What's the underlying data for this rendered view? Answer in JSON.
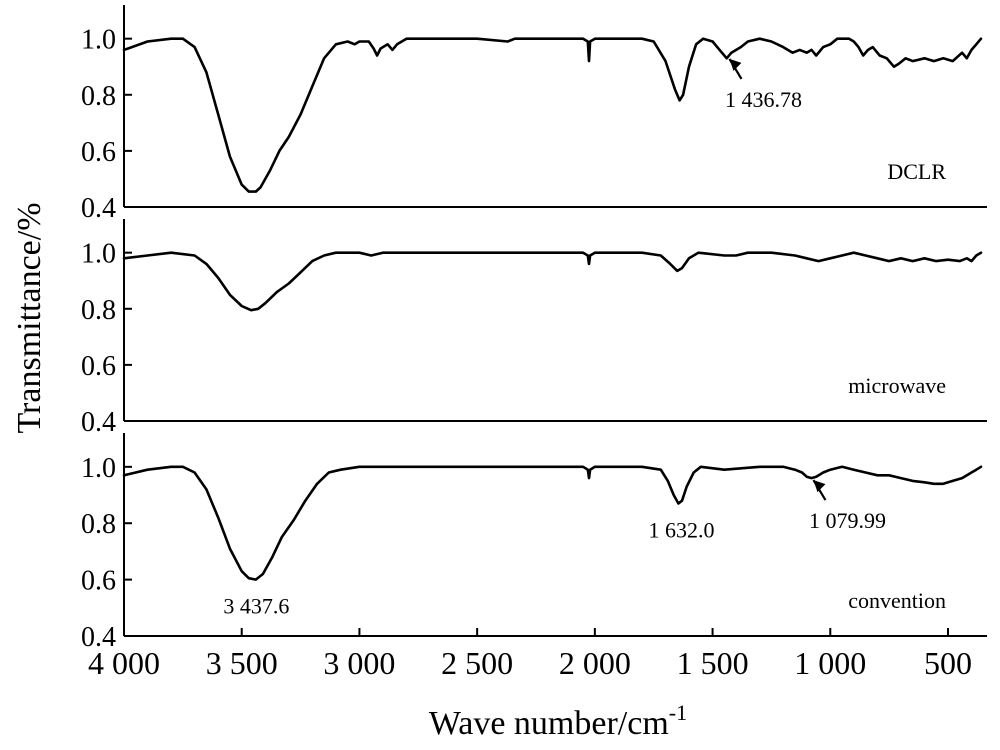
{
  "chart_data": {
    "type": "line",
    "xlabel": "Wave number/cm",
    "xlabel_superscript": "-1",
    "ylabel": "Transmittance/%",
    "xlim": [
      4000,
      400
    ],
    "xticks": [
      {
        "value": 4000,
        "label": "4 000"
      },
      {
        "value": 3500,
        "label": "3 500"
      },
      {
        "value": 3000,
        "label": "3 000"
      },
      {
        "value": 2500,
        "label": "2 500"
      },
      {
        "value": 2000,
        "label": "2 000"
      },
      {
        "value": 1500,
        "label": "1 500"
      },
      {
        "value": 1000,
        "label": "1 000"
      },
      {
        "value": 500,
        "label": "500"
      }
    ],
    "yticks": [
      {
        "value": 0.4,
        "label": "0.4"
      },
      {
        "value": 0.6,
        "label": "0.6"
      },
      {
        "value": 0.8,
        "label": "0.8"
      },
      {
        "value": 1.0,
        "label": "1.0"
      }
    ],
    "ylim": [
      0.4,
      1.12
    ],
    "panels": [
      {
        "name": "DCLR",
        "points": [
          [
            4000,
            0.96
          ],
          [
            3900,
            0.99
          ],
          [
            3800,
            1.0
          ],
          [
            3750,
            1.0
          ],
          [
            3700,
            0.97
          ],
          [
            3650,
            0.88
          ],
          [
            3600,
            0.73
          ],
          [
            3550,
            0.58
          ],
          [
            3500,
            0.48
          ],
          [
            3470,
            0.455
          ],
          [
            3440,
            0.455
          ],
          [
            3420,
            0.47
          ],
          [
            3380,
            0.53
          ],
          [
            3340,
            0.6
          ],
          [
            3300,
            0.65
          ],
          [
            3250,
            0.73
          ],
          [
            3200,
            0.83
          ],
          [
            3150,
            0.93
          ],
          [
            3100,
            0.98
          ],
          [
            3050,
            0.99
          ],
          [
            3020,
            0.98
          ],
          [
            3000,
            0.99
          ],
          [
            2960,
            0.99
          ],
          [
            2940,
            0.965
          ],
          [
            2925,
            0.94
          ],
          [
            2910,
            0.965
          ],
          [
            2880,
            0.98
          ],
          [
            2860,
            0.96
          ],
          [
            2840,
            0.98
          ],
          [
            2800,
            1.0
          ],
          [
            2700,
            1.0
          ],
          [
            2500,
            1.0
          ],
          [
            2370,
            0.99
          ],
          [
            2340,
            1.0
          ],
          [
            2200,
            1.0
          ],
          [
            2050,
            1.0
          ],
          [
            2030,
            0.99
          ],
          [
            2025,
            0.92
          ],
          [
            2020,
            0.99
          ],
          [
            2000,
            1.0
          ],
          [
            1900,
            1.0
          ],
          [
            1800,
            1.0
          ],
          [
            1750,
            0.99
          ],
          [
            1700,
            0.92
          ],
          [
            1660,
            0.82
          ],
          [
            1640,
            0.78
          ],
          [
            1625,
            0.8
          ],
          [
            1600,
            0.9
          ],
          [
            1570,
            0.98
          ],
          [
            1540,
            1.0
          ],
          [
            1500,
            0.99
          ],
          [
            1470,
            0.96
          ],
          [
            1440,
            0.93
          ],
          [
            1420,
            0.95
          ],
          [
            1380,
            0.97
          ],
          [
            1350,
            0.99
          ],
          [
            1300,
            1.0
          ],
          [
            1250,
            0.99
          ],
          [
            1200,
            0.97
          ],
          [
            1160,
            0.95
          ],
          [
            1130,
            0.96
          ],
          [
            1100,
            0.95
          ],
          [
            1080,
            0.96
          ],
          [
            1060,
            0.94
          ],
          [
            1030,
            0.97
          ],
          [
            1000,
            0.98
          ],
          [
            970,
            1.0
          ],
          [
            920,
            1.0
          ],
          [
            900,
            0.99
          ],
          [
            880,
            0.97
          ],
          [
            860,
            0.94
          ],
          [
            840,
            0.96
          ],
          [
            820,
            0.97
          ],
          [
            790,
            0.94
          ],
          [
            760,
            0.93
          ],
          [
            730,
            0.9
          ],
          [
            710,
            0.91
          ],
          [
            680,
            0.93
          ],
          [
            650,
            0.92
          ],
          [
            600,
            0.93
          ],
          [
            560,
            0.92
          ],
          [
            520,
            0.93
          ],
          [
            480,
            0.92
          ],
          [
            440,
            0.95
          ],
          [
            420,
            0.93
          ],
          [
            400,
            0.96
          ],
          [
            380,
            0.98
          ],
          [
            360,
            1.0
          ]
        ]
      },
      {
        "name": "microwave",
        "points": [
          [
            4000,
            0.98
          ],
          [
            3900,
            0.99
          ],
          [
            3800,
            1.0
          ],
          [
            3700,
            0.99
          ],
          [
            3650,
            0.96
          ],
          [
            3600,
            0.91
          ],
          [
            3550,
            0.85
          ],
          [
            3500,
            0.81
          ],
          [
            3460,
            0.795
          ],
          [
            3430,
            0.8
          ],
          [
            3400,
            0.82
          ],
          [
            3350,
            0.86
          ],
          [
            3300,
            0.89
          ],
          [
            3250,
            0.93
          ],
          [
            3200,
            0.97
          ],
          [
            3150,
            0.99
          ],
          [
            3100,
            1.0
          ],
          [
            3000,
            1.0
          ],
          [
            2950,
            0.99
          ],
          [
            2900,
            1.0
          ],
          [
            2700,
            1.0
          ],
          [
            2500,
            1.0
          ],
          [
            2200,
            1.0
          ],
          [
            2050,
            1.0
          ],
          [
            2030,
            0.99
          ],
          [
            2025,
            0.96
          ],
          [
            2020,
            0.99
          ],
          [
            2000,
            1.0
          ],
          [
            1800,
            1.0
          ],
          [
            1720,
            0.99
          ],
          [
            1680,
            0.96
          ],
          [
            1650,
            0.935
          ],
          [
            1630,
            0.945
          ],
          [
            1600,
            0.98
          ],
          [
            1560,
            1.0
          ],
          [
            1450,
            0.99
          ],
          [
            1400,
            0.99
          ],
          [
            1350,
            1.0
          ],
          [
            1250,
            1.0
          ],
          [
            1150,
            0.99
          ],
          [
            1100,
            0.98
          ],
          [
            1050,
            0.97
          ],
          [
            1000,
            0.98
          ],
          [
            950,
            0.99
          ],
          [
            900,
            1.0
          ],
          [
            850,
            0.99
          ],
          [
            800,
            0.98
          ],
          [
            750,
            0.97
          ],
          [
            700,
            0.98
          ],
          [
            650,
            0.97
          ],
          [
            600,
            0.98
          ],
          [
            550,
            0.97
          ],
          [
            500,
            0.975
          ],
          [
            450,
            0.97
          ],
          [
            420,
            0.98
          ],
          [
            400,
            0.97
          ],
          [
            380,
            0.99
          ],
          [
            360,
            1.0
          ]
        ]
      },
      {
        "name": "convention",
        "points": [
          [
            4000,
            0.97
          ],
          [
            3900,
            0.99
          ],
          [
            3800,
            1.0
          ],
          [
            3750,
            1.0
          ],
          [
            3700,
            0.98
          ],
          [
            3650,
            0.92
          ],
          [
            3600,
            0.82
          ],
          [
            3550,
            0.71
          ],
          [
            3500,
            0.63
          ],
          [
            3470,
            0.605
          ],
          [
            3440,
            0.6
          ],
          [
            3410,
            0.62
          ],
          [
            3370,
            0.68
          ],
          [
            3330,
            0.75
          ],
          [
            3280,
            0.81
          ],
          [
            3230,
            0.88
          ],
          [
            3180,
            0.94
          ],
          [
            3130,
            0.98
          ],
          [
            3080,
            0.99
          ],
          [
            3000,
            1.0
          ],
          [
            2900,
            1.0
          ],
          [
            2700,
            1.0
          ],
          [
            2500,
            1.0
          ],
          [
            2200,
            1.0
          ],
          [
            2050,
            1.0
          ],
          [
            2030,
            0.99
          ],
          [
            2025,
            0.96
          ],
          [
            2020,
            0.99
          ],
          [
            2000,
            1.0
          ],
          [
            1800,
            1.0
          ],
          [
            1720,
            0.99
          ],
          [
            1690,
            0.95
          ],
          [
            1665,
            0.9
          ],
          [
            1645,
            0.87
          ],
          [
            1630,
            0.88
          ],
          [
            1610,
            0.93
          ],
          [
            1580,
            0.98
          ],
          [
            1550,
            1.0
          ],
          [
            1450,
            0.99
          ],
          [
            1300,
            1.0
          ],
          [
            1200,
            1.0
          ],
          [
            1150,
            0.99
          ],
          [
            1120,
            0.98
          ],
          [
            1100,
            0.965
          ],
          [
            1080,
            0.96
          ],
          [
            1060,
            0.965
          ],
          [
            1030,
            0.98
          ],
          [
            1000,
            0.99
          ],
          [
            950,
            1.0
          ],
          [
            900,
            0.99
          ],
          [
            850,
            0.98
          ],
          [
            800,
            0.97
          ],
          [
            750,
            0.97
          ],
          [
            700,
            0.96
          ],
          [
            650,
            0.95
          ],
          [
            600,
            0.945
          ],
          [
            560,
            0.94
          ],
          [
            520,
            0.94
          ],
          [
            480,
            0.95
          ],
          [
            440,
            0.96
          ],
          [
            400,
            0.98
          ],
          [
            380,
            0.99
          ],
          [
            360,
            1.0
          ]
        ]
      }
    ],
    "annotations": [
      {
        "panel": 0,
        "text": "1 436.78",
        "x": 1436.78,
        "y": 0.935,
        "arrow": true
      },
      {
        "panel": 2,
        "text": "3 437.6",
        "x": 3437.6,
        "y": 0.6,
        "arrow": false
      },
      {
        "panel": 2,
        "text": "1 632.0",
        "x": 1632.0,
        "y": 0.87,
        "arrow": false
      },
      {
        "panel": 2,
        "text": "1 079.99",
        "x": 1079.99,
        "y": 0.96,
        "arrow": true
      }
    ],
    "grid": false,
    "legend": "none"
  }
}
